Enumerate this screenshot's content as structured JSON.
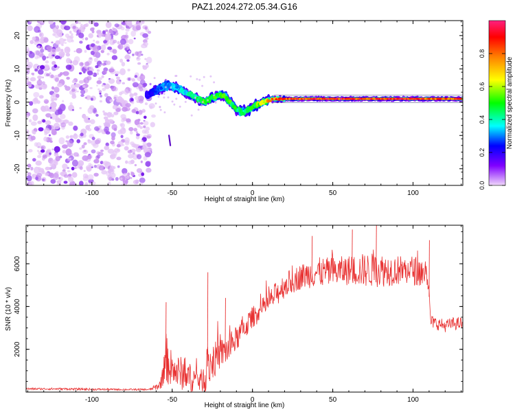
{
  "title": "PAZ1.2024.272.05.34.G16",
  "chart_data": [
    {
      "type": "heatmap",
      "xlabel": "Height of straight line (km)",
      "ylabel": "Frequency (Hz)",
      "xlim": [
        -141,
        131
      ],
      "ylim": [
        -25,
        24.5
      ],
      "x_ticks": [
        -100,
        -50,
        0,
        50,
        100
      ],
      "x_tick_labels": [
        "-100",
        "-50",
        "0",
        "50",
        "100"
      ],
      "y_ticks": [
        -20,
        -10,
        0,
        10,
        20
      ],
      "y_tick_labels": [
        "-20",
        "-10",
        "0",
        "10",
        "20"
      ],
      "colorbar": {
        "label": "Normalized spectral amplitude",
        "range": [
          0,
          1
        ],
        "ticks": [
          0.0,
          0.2,
          0.4,
          0.6,
          0.8
        ],
        "tick_labels": [
          "0.0",
          "0.2",
          "0.4",
          "0.6",
          "0.8"
        ],
        "colormap": [
          "#e8c8f4",
          "#8000ff",
          "#0000ff",
          "#00ffff",
          "#00ff00",
          "#ffff00",
          "#ff8000",
          "#ff0000",
          "#ff2080"
        ]
      },
      "noise_region_x": [
        -141,
        -64
      ],
      "ridge": {
        "x": [
          -66,
          -62,
          -58,
          -54,
          -50,
          -46,
          -42,
          -38,
          -34,
          -30,
          -26,
          -22,
          -18,
          -14,
          -10,
          -6,
          -2,
          2,
          6,
          10,
          14,
          20,
          30,
          40,
          50,
          60,
          70,
          80,
          90,
          100,
          110,
          120,
          131
        ],
        "frequency": [
          2,
          3,
          4,
          5,
          5,
          4,
          3,
          2,
          1,
          0,
          1,
          2,
          2,
          0,
          -2,
          -3,
          -2,
          -1,
          0,
          0.5,
          1,
          1,
          1,
          1,
          1,
          1,
          1,
          1,
          1,
          1,
          1,
          1,
          1
        ],
        "amplitude": [
          0.2,
          0.25,
          0.3,
          0.35,
          0.35,
          0.35,
          0.4,
          0.45,
          0.5,
          0.55,
          0.5,
          0.55,
          0.6,
          0.55,
          0.5,
          0.45,
          0.5,
          0.55,
          0.7,
          0.8,
          0.85,
          0.9,
          0.95,
          0.95,
          0.95,
          0.95,
          0.95,
          0.95,
          0.95,
          0.95,
          0.9,
          0.9,
          0.9
        ]
      },
      "isolated_feature": {
        "x": -52,
        "frequency": [
          -13,
          -10
        ]
      },
      "color_hint": "#a040ff"
    },
    {
      "type": "line",
      "xlabel": "Height of straight line (km)",
      "ylabel": "SNR (10 * v/v)",
      "xlim": [
        -141,
        131
      ],
      "ylim": [
        0,
        7800
      ],
      "x_ticks": [
        -100,
        -50,
        0,
        50,
        100
      ],
      "x_tick_labels": [
        "-100",
        "-50",
        "0",
        "50",
        "100"
      ],
      "y_ticks": [
        2000,
        4000,
        6000
      ],
      "y_tick_labels": [
        "2000",
        "4000",
        "6000"
      ],
      "series_color": "#e83030",
      "envelope": {
        "x": [
          -141,
          -120,
          -100,
          -80,
          -64,
          -58,
          -55,
          -54,
          -50,
          -45,
          -40,
          -35,
          -30,
          -28,
          -25,
          -20,
          -15,
          -10,
          -5,
          0,
          5,
          10,
          15,
          20,
          30,
          40,
          50,
          60,
          70,
          80,
          90,
          100,
          105,
          109,
          111,
          115,
          120,
          125,
          131
        ],
        "mean": [
          150,
          150,
          130,
          120,
          120,
          300,
          900,
          1600,
          1000,
          900,
          700,
          600,
          500,
          1200,
          1400,
          1800,
          2000,
          2500,
          3000,
          3500,
          3800,
          4200,
          4600,
          5000,
          5400,
          5600,
          5600,
          5700,
          5700,
          5700,
          5700,
          5700,
          5600,
          5600,
          3300,
          3200,
          3100,
          3200,
          3200
        ],
        "spread": [
          50,
          50,
          50,
          40,
          40,
          200,
          600,
          1200,
          800,
          800,
          700,
          600,
          500,
          1200,
          900,
          700,
          700,
          600,
          600,
          500,
          500,
          500,
          600,
          600,
          600,
          700,
          700,
          700,
          800,
          800,
          700,
          700,
          700,
          700,
          300,
          300,
          300,
          300,
          300
        ]
      },
      "spikes": [
        {
          "x": -54,
          "y": 4200
        },
        {
          "x": -28,
          "y": 5600
        },
        {
          "x": -17,
          "y": 4400
        },
        {
          "x": 37,
          "y": 7300
        },
        {
          "x": 62,
          "y": 7600
        },
        {
          "x": 77,
          "y": 7800
        },
        {
          "x": 110,
          "y": 7100
        }
      ]
    }
  ]
}
